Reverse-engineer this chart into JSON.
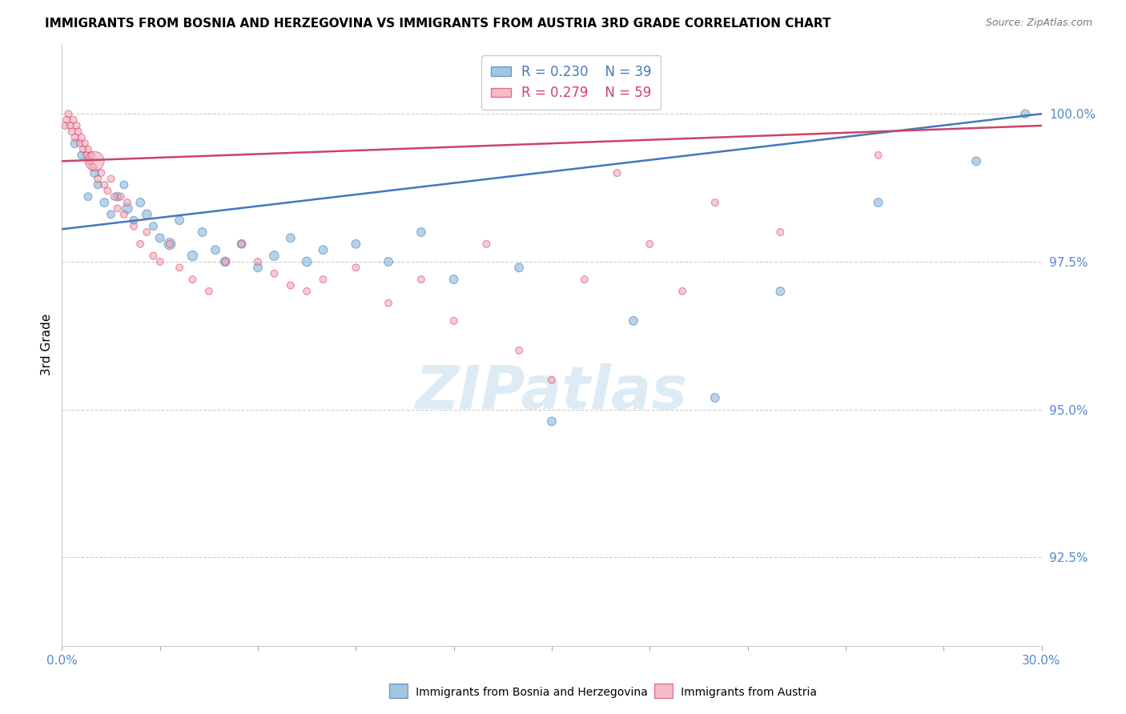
{
  "title": "IMMIGRANTS FROM BOSNIA AND HERZEGOVINA VS IMMIGRANTS FROM AUSTRIA 3RD GRADE CORRELATION CHART",
  "source": "Source: ZipAtlas.com",
  "ylabel": "3rd Grade",
  "y_ticks": [
    92.5,
    95.0,
    97.5,
    100.0
  ],
  "y_tick_labels": [
    "92.5%",
    "95.0%",
    "97.5%",
    "100.0%"
  ],
  "x_min": 0.0,
  "x_max": 30.0,
  "y_min": 91.0,
  "y_max": 101.2,
  "legend_r1": "R = 0.230",
  "legend_n1": "N = 39",
  "legend_r2": "R = 0.279",
  "legend_n2": "N = 59",
  "blue_color": "#7BAFD4",
  "pink_color": "#F4A0B0",
  "blue_line_color": "#4477BB",
  "pink_line_color": "#CC4466",
  "right_axis_color": "#5588CC",
  "watermark_color": "#D8E8F4",
  "watermark": "ZIPatlas",
  "bottom_label1": "Immigrants from Bosnia and Herzegovina",
  "bottom_label2": "Immigrants from Austria",
  "blue_scatter_x": [
    0.4,
    0.6,
    0.8,
    1.0,
    1.1,
    1.3,
    1.5,
    1.7,
    1.9,
    2.0,
    2.2,
    2.4,
    2.6,
    2.8,
    3.0,
    3.3,
    3.6,
    4.0,
    4.3,
    4.7,
    5.0,
    5.5,
    6.0,
    6.5,
    7.0,
    7.5,
    8.0,
    9.0,
    10.0,
    11.0,
    12.0,
    14.0,
    15.0,
    17.5,
    20.0,
    22.0,
    25.0,
    28.0,
    29.5
  ],
  "blue_scatter_y": [
    99.5,
    99.3,
    98.6,
    99.0,
    98.8,
    98.5,
    98.3,
    98.6,
    98.8,
    98.4,
    98.2,
    98.5,
    98.3,
    98.1,
    97.9,
    97.8,
    98.2,
    97.6,
    98.0,
    97.7,
    97.5,
    97.8,
    97.4,
    97.6,
    97.9,
    97.5,
    97.7,
    97.8,
    97.5,
    98.0,
    97.2,
    97.4,
    94.8,
    96.5,
    95.2,
    97.0,
    98.5,
    99.2,
    100.0
  ],
  "blue_scatter_sizes": [
    60,
    50,
    50,
    60,
    50,
    60,
    50,
    60,
    50,
    80,
    50,
    60,
    70,
    50,
    60,
    100,
    60,
    80,
    60,
    60,
    70,
    60,
    60,
    70,
    60,
    70,
    60,
    60,
    60,
    60,
    60,
    60,
    60,
    60,
    60,
    60,
    60,
    60,
    60
  ],
  "pink_scatter_x": [
    0.1,
    0.15,
    0.2,
    0.25,
    0.3,
    0.35,
    0.4,
    0.45,
    0.5,
    0.55,
    0.6,
    0.65,
    0.7,
    0.75,
    0.8,
    0.85,
    0.9,
    0.95,
    1.0,
    1.1,
    1.2,
    1.3,
    1.4,
    1.5,
    1.6,
    1.7,
    1.8,
    1.9,
    2.0,
    2.2,
    2.4,
    2.6,
    2.8,
    3.0,
    3.3,
    3.6,
    4.0,
    4.5,
    5.0,
    5.5,
    6.0,
    6.5,
    7.0,
    7.5,
    8.0,
    9.0,
    10.0,
    11.0,
    12.0,
    13.0,
    14.0,
    15.0,
    16.0,
    17.0,
    18.0,
    19.0,
    20.0,
    22.0,
    25.0
  ],
  "pink_scatter_y": [
    99.8,
    99.9,
    100.0,
    99.8,
    99.7,
    99.9,
    99.6,
    99.8,
    99.7,
    99.5,
    99.6,
    99.4,
    99.5,
    99.3,
    99.4,
    99.2,
    99.3,
    99.1,
    99.2,
    98.9,
    99.0,
    98.8,
    98.7,
    98.9,
    98.6,
    98.4,
    98.6,
    98.3,
    98.5,
    98.1,
    97.8,
    98.0,
    97.6,
    97.5,
    97.8,
    97.4,
    97.2,
    97.0,
    97.5,
    97.8,
    97.5,
    97.3,
    97.1,
    97.0,
    97.2,
    97.4,
    96.8,
    97.2,
    96.5,
    97.8,
    96.0,
    95.5,
    97.2,
    99.0,
    97.8,
    97.0,
    98.5,
    98.0,
    99.3
  ],
  "pink_scatter_sizes": [
    40,
    40,
    40,
    40,
    40,
    40,
    40,
    40,
    40,
    40,
    40,
    40,
    40,
    40,
    40,
    40,
    40,
    40,
    300,
    40,
    40,
    40,
    40,
    40,
    40,
    40,
    40,
    40,
    40,
    40,
    40,
    40,
    40,
    40,
    40,
    40,
    40,
    40,
    40,
    40,
    40,
    40,
    40,
    40,
    40,
    40,
    40,
    40,
    40,
    40,
    40,
    40,
    40,
    40,
    40,
    40,
    40,
    40,
    40
  ],
  "blue_trend_x0": 0.0,
  "blue_trend_x1": 30.0,
  "blue_trend_y0": 98.05,
  "blue_trend_y1": 100.0,
  "pink_trend_x0": 0.0,
  "pink_trend_x1": 30.0,
  "pink_trend_y0": 99.2,
  "pink_trend_y1": 99.8
}
